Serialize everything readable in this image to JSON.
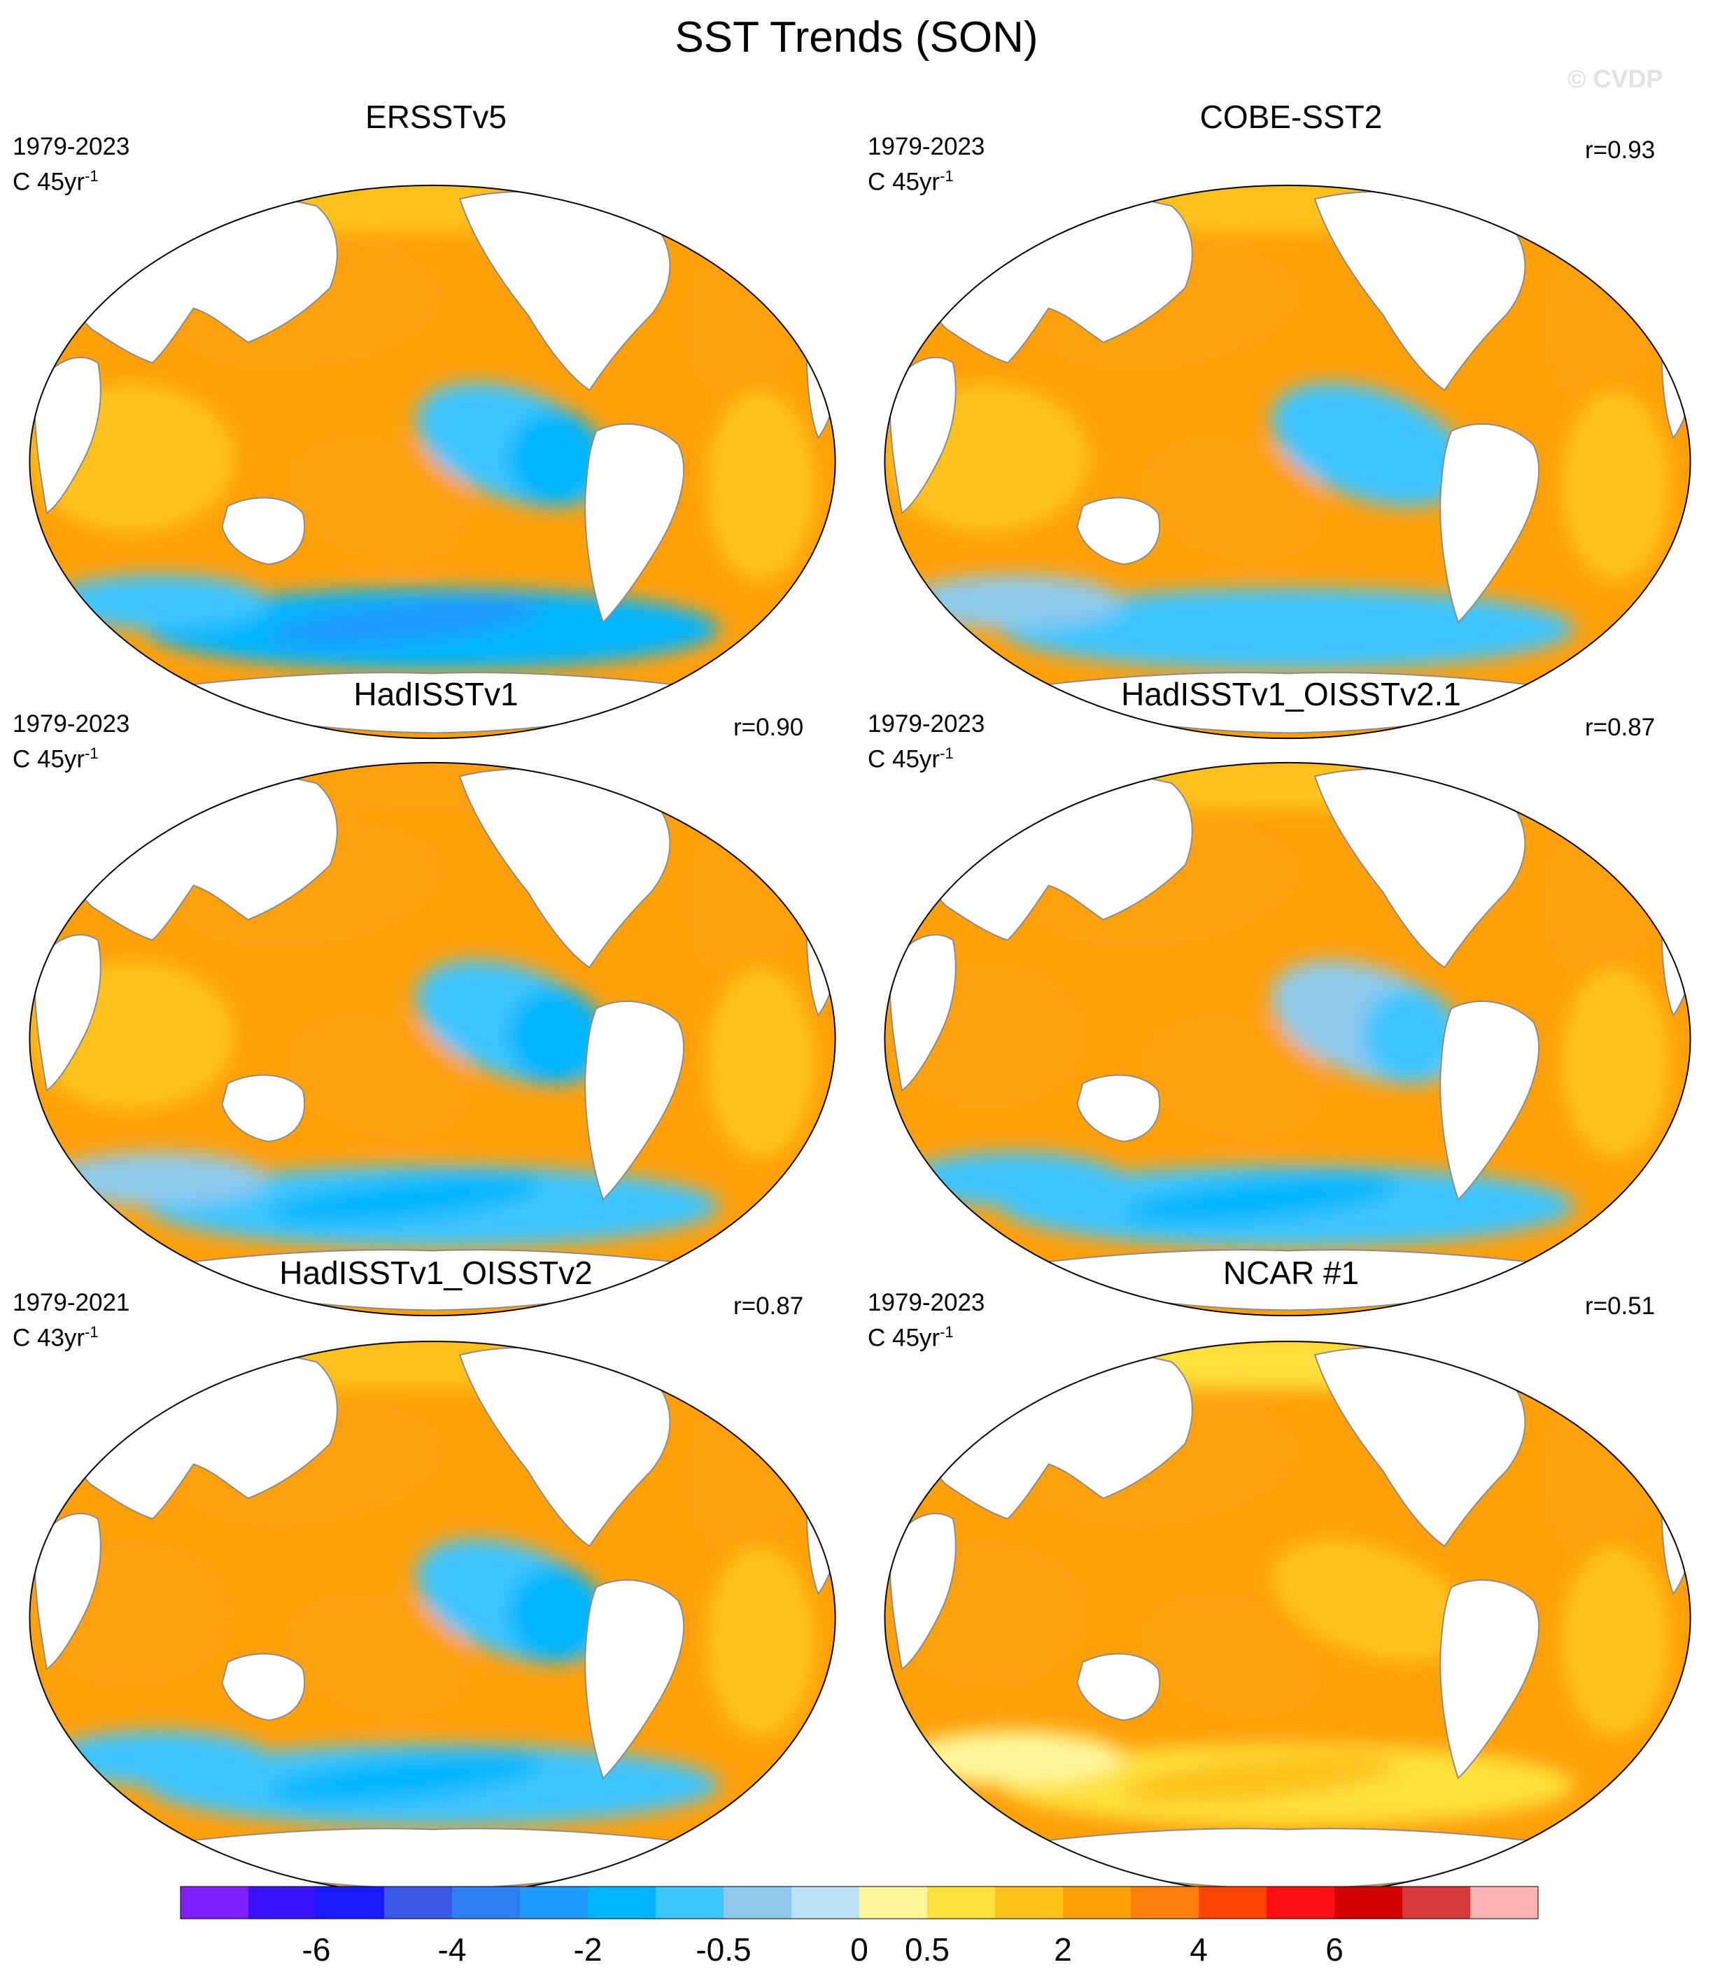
{
  "title": "SST Trends (SON)",
  "watermark": "© CVDP",
  "chart_data": [
    {
      "type": "heatmap",
      "title": "ERSSTv5",
      "period": "1979-2023",
      "units": "C 45yr",
      "units_exponent": "-1",
      "correlation": "",
      "projection": "Robinson, centered on Pacific",
      "pattern": {
        "equatorial_pacific": -0.8,
        "southern_ocean": -1.4,
        "north_pacific": 1.5,
        "north_atlantic": 1.2,
        "indian_ocean": 0.8,
        "subtropics": 1.0,
        "arctic": 0.5
      }
    },
    {
      "type": "heatmap",
      "title": "COBE-SST2",
      "period": "1979-2023",
      "units": "C 45yr",
      "units_exponent": "-1",
      "correlation": "r=0.93",
      "projection": "Robinson, centered on Pacific",
      "pattern": {
        "equatorial_pacific": -0.6,
        "southern_ocean": -0.6,
        "north_pacific": 1.4,
        "north_atlantic": 1.3,
        "indian_ocean": 0.9,
        "subtropics": 1.0,
        "arctic": 0.8
      }
    },
    {
      "type": "heatmap",
      "title": "HadISSTv1",
      "period": "1979-2023",
      "units": "C 45yr",
      "units_exponent": "-1",
      "correlation": "r=0.90",
      "projection": "Robinson, centered on Pacific",
      "pattern": {
        "equatorial_pacific": -0.9,
        "southern_ocean": -0.7,
        "north_pacific": 1.5,
        "north_atlantic": 1.3,
        "indian_ocean": 0.9,
        "subtropics": 1.0,
        "arctic": 1.2
      }
    },
    {
      "type": "heatmap",
      "title": "HadISSTv1_OISSTv2.1",
      "period": "1979-2023",
      "units": "C 45yr",
      "units_exponent": "-1",
      "correlation": "r=0.87",
      "projection": "Robinson, centered on Pacific",
      "pattern": {
        "equatorial_pacific": -0.5,
        "southern_ocean": -0.9,
        "north_pacific": 1.5,
        "north_atlantic": 1.6,
        "indian_ocean": 1.0,
        "subtropics": 1.1,
        "arctic": 0.9
      }
    },
    {
      "type": "heatmap",
      "title": "HadISSTv1_OISSTv2",
      "period": "1979-2021",
      "units": "C 43yr",
      "units_exponent": "-1",
      "correlation": "r=0.87",
      "projection": "Robinson, centered on Pacific",
      "pattern": {
        "equatorial_pacific": -0.8,
        "southern_ocean": -1.0,
        "north_pacific": 1.5,
        "north_atlantic": 1.3,
        "indian_ocean": 1.0,
        "subtropics": 1.0,
        "arctic": 0.9
      }
    },
    {
      "type": "heatmap",
      "title": "NCAR #1",
      "period": "1979-2023",
      "units": "C 45yr",
      "units_exponent": "-1",
      "correlation": "r=0.51",
      "projection": "Robinson, centered on Pacific",
      "pattern": {
        "equatorial_pacific": 0.6,
        "southern_ocean": 0.4,
        "north_pacific": 1.1,
        "north_atlantic": 1.2,
        "indian_ocean": 1.1,
        "subtropics": 1.1,
        "arctic": 0.3
      }
    }
  ],
  "colorbar": {
    "colors": [
      "#7f1fff",
      "#3a12ff",
      "#1a1aff",
      "#3c58e8",
      "#2d7ff0",
      "#1f9bff",
      "#00b5ff",
      "#3cc5ff",
      "#8ec9ec",
      "#bde2f5",
      "#fff59a",
      "#ffe03c",
      "#ffc21a",
      "#ffa00a",
      "#ff7f0a",
      "#ff4500",
      "#ff0f0f",
      "#d40000",
      "#d63a3a",
      "#ffb2b2"
    ],
    "labels": [
      "-6",
      "-4",
      "-2",
      "-0.5",
      "0",
      "0.5",
      "2",
      "4",
      "6"
    ],
    "label_boundaries": [
      2,
      4,
      6,
      8,
      10,
      11,
      13,
      15,
      17
    ]
  }
}
